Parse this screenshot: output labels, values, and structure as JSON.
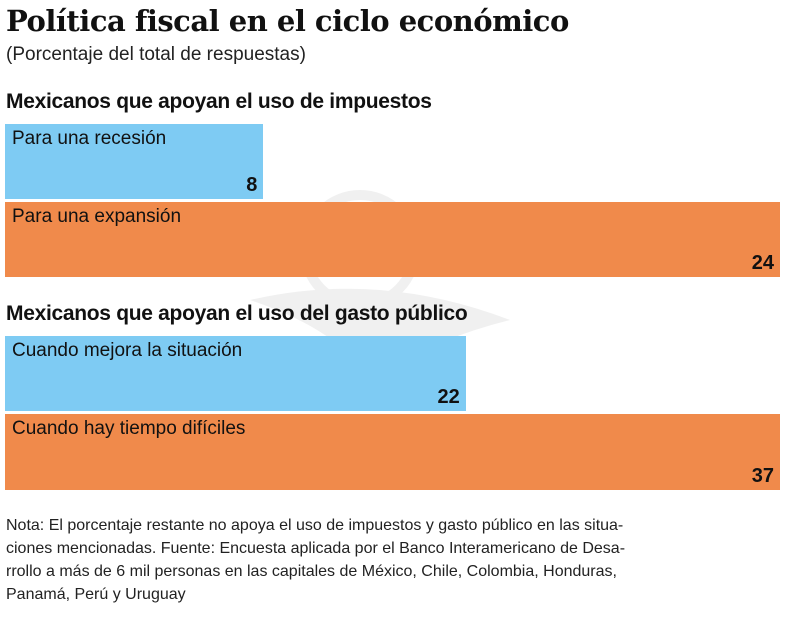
{
  "chart_data": {
    "type": "bar",
    "orientation": "horizontal",
    "title": "Política fiscal en el ciclo económico",
    "subtitle": "(Porcentaje del total de respuestas)",
    "colors": {
      "blue": "#7ecbf3",
      "orange": "#f08a4b"
    },
    "groups": [
      {
        "title": "Mexicanos que apoyan el uso de impuestos",
        "bars": [
          {
            "label": "Para una recesión",
            "value": 8,
            "color": "#7ecbf3"
          },
          {
            "label": "Para una expansión",
            "value": 24,
            "color": "#f08a4b"
          }
        ]
      },
      {
        "title": "Mexicanos que apoyan el uso del gasto público",
        "bars": [
          {
            "label": "Cuando mejora la situación",
            "value": 22,
            "color": "#7ecbf3"
          },
          {
            "label": "Cuando hay tiempo difíciles",
            "value": 37,
            "color": "#f08a4b"
          }
        ]
      }
    ]
  },
  "note_lines": [
    "Nota: El porcentaje restante no apoya el uso de impuestos y gasto público en las situa-",
    "ciones mencionadas. Fuente: Encuesta aplicada por el Banco Interamericano de Desa-",
    "rrollo a más de 6 mil personas en las capitales de México, Chile, Colombia, Honduras,",
    "Panamá, Perú y Uruguay"
  ]
}
